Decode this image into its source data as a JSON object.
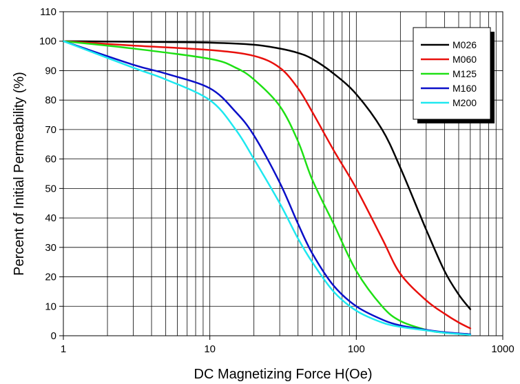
{
  "chart_data": {
    "type": "line",
    "title": "",
    "xlabel": "DC Magnetizing Force H(Oe)",
    "ylabel": "Percent of Initial Permeability (%)",
    "xscale": "log",
    "xlim": [
      1,
      1000
    ],
    "ylim": [
      0,
      110
    ],
    "x_ticks": [
      "1",
      "10",
      "100",
      "1000"
    ],
    "y_ticks": [
      "0",
      "10",
      "20",
      "30",
      "40",
      "50",
      "60",
      "70",
      "80",
      "90",
      "100",
      "110"
    ],
    "grid": true,
    "legend_position": "top-right",
    "series": [
      {
        "name": "M026",
        "color": "#000000",
        "points": [
          [
            1,
            100
          ],
          [
            5,
            99.7
          ],
          [
            10,
            99.5
          ],
          [
            20,
            98.8
          ],
          [
            30,
            97.5
          ],
          [
            40,
            96
          ],
          [
            50,
            94
          ],
          [
            70,
            89
          ],
          [
            100,
            82
          ],
          [
            150,
            70
          ],
          [
            200,
            57
          ],
          [
            300,
            36
          ],
          [
            400,
            22
          ],
          [
            500,
            14
          ],
          [
            600,
            9
          ]
        ]
      },
      {
        "name": "M060",
        "color": "#e8100c",
        "points": [
          [
            1,
            100
          ],
          [
            3,
            98.5
          ],
          [
            10,
            97
          ],
          [
            20,
            95
          ],
          [
            30,
            91
          ],
          [
            40,
            84
          ],
          [
            50,
            76
          ],
          [
            70,
            63
          ],
          [
            100,
            50
          ],
          [
            150,
            33
          ],
          [
            200,
            21
          ],
          [
            300,
            12
          ],
          [
            400,
            7.5
          ],
          [
            500,
            4.5
          ],
          [
            600,
            2.5
          ]
        ]
      },
      {
        "name": "M125",
        "color": "#1ee014",
        "points": [
          [
            1,
            100
          ],
          [
            3,
            97.5
          ],
          [
            10,
            94
          ],
          [
            15,
            91
          ],
          [
            20,
            87
          ],
          [
            30,
            78
          ],
          [
            40,
            66
          ],
          [
            50,
            53
          ],
          [
            70,
            38
          ],
          [
            100,
            22
          ],
          [
            150,
            10
          ],
          [
            200,
            5
          ],
          [
            300,
            2
          ],
          [
            400,
            1
          ],
          [
            600,
            0.5
          ]
        ]
      },
      {
        "name": "M160",
        "color": "#0a0fc8",
        "points": [
          [
            1,
            100
          ],
          [
            3,
            92
          ],
          [
            5,
            89
          ],
          [
            10,
            84
          ],
          [
            15,
            76
          ],
          [
            20,
            68
          ],
          [
            30,
            52
          ],
          [
            40,
            38
          ],
          [
            50,
            28
          ],
          [
            70,
            17
          ],
          [
            100,
            10
          ],
          [
            150,
            5.5
          ],
          [
            200,
            3.5
          ],
          [
            300,
            2
          ],
          [
            400,
            1.2
          ],
          [
            600,
            0.5
          ]
        ]
      },
      {
        "name": "M200",
        "color": "#1ee8f0",
        "points": [
          [
            1,
            100
          ],
          [
            3,
            91
          ],
          [
            5,
            87
          ],
          [
            10,
            80
          ],
          [
            15,
            70
          ],
          [
            20,
            60
          ],
          [
            30,
            45
          ],
          [
            40,
            33
          ],
          [
            50,
            25
          ],
          [
            70,
            15
          ],
          [
            100,
            8.5
          ],
          [
            150,
            4.5
          ],
          [
            200,
            3
          ],
          [
            300,
            1.8
          ],
          [
            400,
            1
          ],
          [
            600,
            0.3
          ]
        ]
      }
    ]
  }
}
